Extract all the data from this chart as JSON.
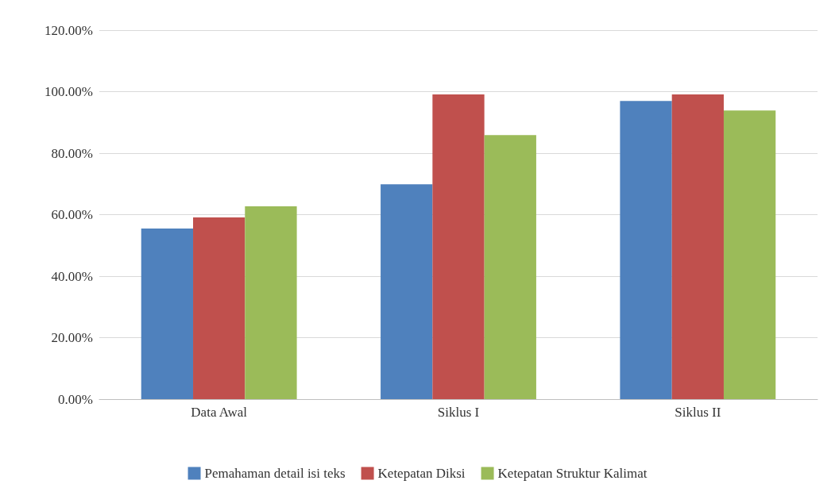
{
  "chart_data": {
    "type": "bar",
    "categories": [
      "Data Awal",
      "Siklus I",
      "Siklus II"
    ],
    "series": [
      {
        "name": "Pemahaman detail isi teks",
        "color": "#4f81bd",
        "values": [
          55.5,
          69.9,
          97.0
        ]
      },
      {
        "name": "Ketepatan Diksi",
        "color": "#c0504d",
        "values": [
          59.1,
          99.1,
          99.1
        ]
      },
      {
        "name": "Ketepatan Struktur Kalimat",
        "color": "#9bbb59",
        "values": [
          62.7,
          85.9,
          93.9
        ]
      }
    ],
    "ylim": [
      0,
      120
    ],
    "yticks": [
      {
        "value": 0,
        "label": "0.00%"
      },
      {
        "value": 20,
        "label": "20.00%"
      },
      {
        "value": 40,
        "label": "40.00%"
      },
      {
        "value": 60,
        "label": "60.00%"
      },
      {
        "value": 80,
        "label": "80.00%"
      },
      {
        "value": 100,
        "label": "100.00%"
      },
      {
        "value": 120,
        "label": "120.00%"
      }
    ],
    "grid": "y",
    "legend": "bottom"
  }
}
